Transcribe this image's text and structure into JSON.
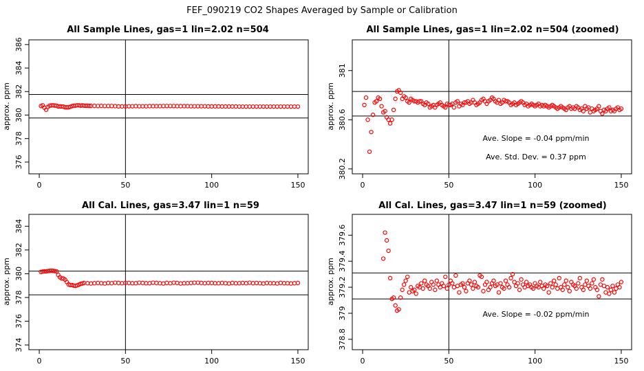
{
  "figure": {
    "title": "FEF_090219  CO2 Shapes Averaged by Sample or Calibration"
  },
  "chart_data": [
    {
      "type": "scatter",
      "title": "All Sample Lines, gas=1 lin=2.02 n=504",
      "xlabel": "",
      "ylabel": "approx. ppm",
      "xlim": [
        -6,
        156
      ],
      "ylim": [
        375,
        386.4
      ],
      "xticks": [
        0,
        50,
        100,
        150
      ],
      "yticks": [
        376,
        378,
        380,
        382,
        384,
        386
      ],
      "vline": 50,
      "hlines": [
        379.75,
        381.75
      ],
      "marker_color": "#ff0000",
      "annotations": [],
      "series": [
        {
          "x": [
            1,
            2,
            3,
            4,
            5,
            6,
            7,
            8,
            9,
            10,
            11,
            12,
            13,
            14,
            15,
            16,
            17,
            18,
            19,
            20,
            21,
            22,
            23,
            24,
            25,
            26,
            27,
            28,
            29,
            30,
            32,
            34,
            36,
            38,
            40,
            42,
            44,
            46,
            48,
            50,
            52,
            54,
            56,
            58,
            60,
            62,
            64,
            66,
            68,
            70,
            72,
            74,
            76,
            78,
            80,
            82,
            84,
            86,
            88,
            90,
            92,
            94,
            96,
            98,
            100,
            102,
            104,
            106,
            108,
            110,
            112,
            114,
            116,
            118,
            120,
            122,
            124,
            126,
            128,
            130,
            132,
            134,
            136,
            138,
            140,
            142,
            144,
            146,
            148,
            150
          ],
          "values": [
            380.77,
            380.83,
            380.63,
            380.45,
            380.69,
            380.8,
            380.82,
            380.83,
            380.81,
            380.8,
            380.73,
            380.73,
            380.73,
            380.72,
            380.66,
            380.66,
            380.66,
            380.7,
            380.76,
            380.8,
            380.8,
            380.83,
            380.83,
            380.8,
            380.82,
            380.8,
            380.79,
            380.8,
            380.78,
            380.78,
            380.78,
            380.77,
            380.78,
            380.77,
            380.77,
            380.77,
            380.76,
            380.74,
            380.74,
            380.74,
            380.75,
            380.75,
            380.76,
            380.75,
            380.75,
            380.75,
            380.76,
            380.76,
            380.76,
            380.76,
            380.77,
            380.77,
            380.77,
            380.77,
            380.76,
            380.76,
            380.76,
            380.76,
            380.75,
            380.75,
            380.75,
            380.75,
            380.75,
            380.74,
            380.74,
            380.74,
            380.74,
            380.73,
            380.73,
            380.73,
            380.73,
            380.73,
            380.72,
            380.72,
            380.72,
            380.72,
            380.72,
            380.72,
            380.72,
            380.72,
            380.72,
            380.72,
            380.72,
            380.72,
            380.72,
            380.72,
            380.72,
            380.72,
            380.72,
            380.72
          ]
        }
      ]
    },
    {
      "type": "scatter",
      "title": "All Sample Lines, gas=1 lin=2.02 n=504 (zoomed)",
      "xlabel": "",
      "ylabel": "approx. ppm",
      "xlim": [
        -6,
        156
      ],
      "ylim": [
        380.16,
        381.25
      ],
      "xticks": [
        0,
        50,
        100,
        150
      ],
      "yticks": [
        380.2,
        380.6,
        381.0
      ],
      "vline": 50,
      "hlines": [
        380.63,
        380.83
      ],
      "marker_color": "#ff0000",
      "annotations": [
        "Ave. Slope =  -0.04  ppm/min",
        "Ave. Std. Dev. =  0.37  ppm"
      ],
      "series": [
        {
          "x": [
            1,
            2,
            3,
            4,
            5,
            6,
            7,
            8,
            9,
            10,
            11,
            12,
            13,
            14,
            15,
            16,
            17,
            18,
            19,
            20,
            21,
            22,
            23,
            24,
            25,
            26,
            27,
            28,
            29,
            30,
            31,
            32,
            33,
            34,
            35,
            36,
            37,
            38,
            39,
            40,
            41,
            42,
            43,
            44,
            45,
            46,
            47,
            48,
            49,
            50,
            51,
            52,
            53,
            54,
            55,
            56,
            57,
            58,
            59,
            60,
            61,
            62,
            63,
            64,
            65,
            66,
            67,
            68,
            69,
            70,
            71,
            72,
            73,
            74,
            75,
            76,
            77,
            78,
            79,
            80,
            81,
            82,
            83,
            84,
            85,
            86,
            87,
            88,
            89,
            90,
            91,
            92,
            93,
            94,
            95,
            96,
            97,
            98,
            99,
            100,
            101,
            102,
            103,
            104,
            105,
            106,
            107,
            108,
            109,
            110,
            111,
            112,
            113,
            114,
            115,
            116,
            117,
            118,
            119,
            120,
            121,
            122,
            123,
            124,
            125,
            126,
            127,
            128,
            129,
            130,
            131,
            132,
            133,
            134,
            135,
            136,
            137,
            138,
            139,
            140,
            141,
            142,
            143,
            144,
            145,
            146,
            147,
            148,
            149,
            150
          ],
          "values": [
            380.72,
            380.78,
            380.6,
            380.34,
            380.5,
            380.64,
            380.74,
            380.75,
            380.78,
            380.77,
            380.71,
            380.66,
            380.67,
            380.62,
            380.6,
            380.57,
            380.6,
            380.68,
            380.77,
            380.83,
            380.84,
            380.82,
            380.77,
            380.79,
            380.78,
            380.75,
            380.74,
            380.77,
            380.76,
            380.75,
            380.75,
            380.74,
            380.75,
            380.75,
            380.73,
            380.72,
            380.74,
            380.73,
            380.7,
            380.71,
            380.72,
            380.7,
            380.72,
            380.73,
            380.74,
            380.72,
            380.71,
            380.7,
            380.73,
            380.72,
            380.72,
            380.73,
            380.7,
            380.74,
            380.75,
            380.71,
            380.73,
            380.72,
            380.74,
            380.74,
            380.75,
            380.73,
            380.74,
            380.76,
            380.74,
            380.72,
            380.73,
            380.74,
            380.76,
            380.77,
            380.75,
            380.73,
            380.75,
            380.76,
            380.78,
            380.77,
            380.75,
            380.74,
            380.76,
            380.73,
            380.74,
            380.76,
            380.75,
            380.75,
            380.74,
            380.72,
            380.73,
            380.74,
            380.72,
            380.73,
            380.74,
            380.75,
            380.74,
            380.72,
            380.73,
            380.71,
            380.72,
            380.73,
            380.72,
            380.71,
            380.72,
            380.73,
            380.71,
            380.72,
            380.71,
            380.72,
            380.71,
            380.7,
            380.71,
            380.72,
            380.71,
            380.7,
            380.69,
            380.7,
            380.71,
            380.7,
            380.69,
            380.68,
            380.7,
            380.71,
            380.69,
            380.7,
            380.69,
            380.71,
            380.7,
            380.68,
            380.69,
            380.67,
            380.71,
            380.69,
            380.7,
            380.66,
            380.69,
            380.67,
            380.68,
            380.69,
            380.71,
            380.67,
            380.65,
            380.68,
            380.67,
            380.69,
            380.7,
            380.67,
            380.68,
            380.67,
            380.69,
            380.7,
            380.68,
            380.69
          ]
        }
      ]
    },
    {
      "type": "scatter",
      "title": "All Cal. Lines, gas=3.47 lin=1 n=59",
      "xlabel": "",
      "ylabel": "approx. ppm",
      "xlim": [
        -6,
        156
      ],
      "ylim": [
        373.6,
        385.0
      ],
      "xticks": [
        0,
        50,
        100,
        150
      ],
      "yticks": [
        374,
        376,
        378,
        380,
        382,
        384
      ],
      "vline": 50,
      "hlines": [
        378.22,
        380.22
      ],
      "marker_color": "#ff0000",
      "annotations": [],
      "series": [
        {
          "x": [
            1,
            2,
            3,
            4,
            5,
            6,
            7,
            8,
            9,
            10,
            11,
            12,
            13,
            14,
            15,
            16,
            17,
            18,
            19,
            20,
            21,
            22,
            23,
            24,
            25,
            26,
            28,
            30,
            32,
            34,
            36,
            38,
            40,
            42,
            44,
            46,
            48,
            50,
            52,
            54,
            56,
            58,
            60,
            62,
            64,
            66,
            68,
            70,
            72,
            74,
            76,
            78,
            80,
            82,
            84,
            86,
            88,
            90,
            92,
            94,
            96,
            98,
            100,
            102,
            104,
            106,
            108,
            110,
            112,
            114,
            116,
            118,
            120,
            122,
            124,
            126,
            128,
            130,
            132,
            134,
            136,
            138,
            140,
            142,
            144,
            146,
            148,
            150
          ],
          "values": [
            380.15,
            380.18,
            380.2,
            380.2,
            380.22,
            380.24,
            380.26,
            380.24,
            380.22,
            380.2,
            379.9,
            379.7,
            379.6,
            379.6,
            379.5,
            379.3,
            379.1,
            379.05,
            379.05,
            379.0,
            378.98,
            379.02,
            379.08,
            379.15,
            379.18,
            379.22,
            379.2,
            379.18,
            379.2,
            379.22,
            379.2,
            379.18,
            379.22,
            379.2,
            379.24,
            379.22,
            379.2,
            379.22,
            379.22,
            379.2,
            379.2,
            379.24,
            379.22,
            379.2,
            379.2,
            379.24,
            379.22,
            379.2,
            379.18,
            379.22,
            379.2,
            379.24,
            379.22,
            379.18,
            379.2,
            379.2,
            379.22,
            379.24,
            379.24,
            379.22,
            379.2,
            379.22,
            379.22,
            379.2,
            379.2,
            379.22,
            379.2,
            379.18,
            379.22,
            379.2,
            379.2,
            379.22,
            379.2,
            379.24,
            379.2,
            379.22,
            379.2,
            379.18,
            379.22,
            379.2,
            379.2,
            379.18,
            379.22,
            379.2,
            379.2,
            379.18,
            379.2,
            379.22
          ]
        }
      ]
    },
    {
      "type": "scatter",
      "title": "All Cal. Lines, gas=3.47 lin=1 n=59 (zoomed)",
      "xlabel": "",
      "ylabel": "approx. ppm",
      "xlim": [
        -6,
        156
      ],
      "ylim": [
        378.72,
        379.76
      ],
      "xticks": [
        0,
        50,
        100,
        150
      ],
      "yticks": [
        378.8,
        379.0,
        379.2,
        379.4,
        379.6
      ],
      "vline": 50,
      "hlines": [
        379.11,
        379.31
      ],
      "marker_color": "#ff0000",
      "annotations": [
        "Ave. Slope =  -0.02  ppm/min"
      ],
      "series": [
        {
          "x": [
            12,
            13,
            14,
            15,
            16,
            17,
            18,
            19,
            20,
            21,
            22,
            23,
            24,
            25,
            26,
            27,
            28,
            29,
            30,
            31,
            32,
            33,
            34,
            35,
            36,
            37,
            38,
            39,
            40,
            41,
            42,
            43,
            44,
            45,
            46,
            47,
            48,
            49,
            50,
            51,
            52,
            53,
            54,
            55,
            56,
            57,
            58,
            59,
            60,
            61,
            62,
            63,
            64,
            65,
            66,
            67,
            68,
            69,
            70,
            71,
            72,
            73,
            74,
            75,
            76,
            77,
            78,
            79,
            80,
            81,
            82,
            83,
            84,
            85,
            86,
            87,
            88,
            89,
            90,
            91,
            92,
            93,
            94,
            95,
            96,
            97,
            98,
            99,
            100,
            101,
            102,
            103,
            104,
            105,
            106,
            107,
            108,
            109,
            110,
            111,
            112,
            113,
            114,
            115,
            116,
            117,
            118,
            119,
            120,
            121,
            122,
            123,
            124,
            125,
            126,
            127,
            128,
            129,
            130,
            131,
            132,
            133,
            134,
            135,
            136,
            137,
            138,
            139,
            140,
            141,
            142,
            143,
            144,
            145,
            146,
            147,
            148,
            149,
            150
          ],
          "values": [
            379.42,
            379.62,
            379.56,
            379.48,
            379.27,
            379.11,
            379.12,
            379.06,
            379.02,
            379.03,
            379.12,
            379.18,
            379.22,
            379.25,
            379.28,
            379.16,
            379.2,
            379.17,
            379.18,
            379.15,
            379.21,
            379.2,
            379.23,
            379.19,
            379.25,
            379.22,
            379.21,
            379.19,
            379.24,
            379.22,
            379.18,
            379.25,
            379.22,
            379.2,
            379.23,
            379.21,
            379.28,
            379.19,
            379.22,
            379.25,
            379.23,
            379.2,
            379.29,
            379.21,
            379.16,
            379.22,
            379.23,
            379.2,
            379.17,
            379.23,
            379.25,
            379.22,
            379.19,
            379.24,
            379.21,
            379.2,
            379.29,
            379.28,
            379.17,
            379.22,
            379.24,
            379.18,
            379.2,
            379.23,
            379.25,
            379.21,
            379.22,
            379.16,
            379.23,
            379.2,
            379.19,
            379.25,
            379.22,
            379.2,
            379.27,
            379.3,
            379.24,
            379.21,
            379.23,
            379.18,
            379.26,
            379.22,
            379.2,
            379.24,
            379.21,
            379.22,
            379.2,
            379.19,
            379.23,
            379.21,
            379.2,
            379.24,
            379.21,
            379.19,
            379.22,
            379.21,
            379.16,
            379.23,
            379.2,
            379.25,
            379.22,
            379.19,
            379.27,
            379.2,
            379.18,
            379.22,
            379.25,
            379.2,
            379.17,
            379.24,
            379.22,
            379.21,
            379.19,
            379.23,
            379.27,
            379.2,
            379.18,
            379.22,
            379.25,
            379.21,
            379.19,
            379.23,
            379.26,
            379.2,
            379.18,
            379.13,
            379.22,
            379.26,
            379.21,
            379.16,
            379.2,
            379.15,
            379.18,
            379.21,
            379.16,
            379.19,
            379.22,
            379.2,
            379.24
          ]
        }
      ]
    }
  ]
}
